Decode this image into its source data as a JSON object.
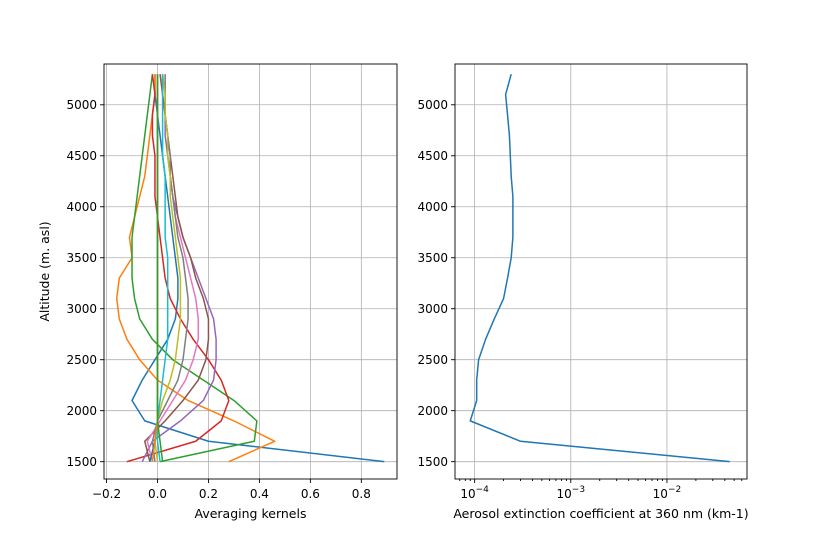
{
  "chart_data": [
    {
      "type": "line",
      "title": "",
      "xlabel": "Averaging kernels",
      "ylabel": "Altitude (m. asl)",
      "xlim": [
        -0.21,
        0.94
      ],
      "ylim": [
        1330,
        5400
      ],
      "xticks": [
        -0.2,
        0.0,
        0.2,
        0.4,
        0.6,
        0.8
      ],
      "xtick_labels": [
        "−0.2",
        "0.0",
        "0.2",
        "0.4",
        "0.6",
        "0.8"
      ],
      "yticks": [
        1500,
        2000,
        2500,
        3000,
        3500,
        4000,
        4500,
        5000
      ],
      "ytick_labels": [
        "1500",
        "2000",
        "2500",
        "3000",
        "3500",
        "4000",
        "4500",
        "5000"
      ],
      "grid": true,
      "y": [
        1500,
        1700,
        1900,
        2100,
        2300,
        2500,
        2700,
        2900,
        3100,
        3300,
        3500,
        3700,
        3900,
        4100,
        4300,
        4500,
        4700,
        4900,
        5100,
        5300
      ],
      "series": [
        {
          "color": "#1f77b4",
          "values": [
            0.89,
            0.2,
            -0.05,
            -0.1,
            -0.06,
            -0.01,
            0.04,
            0.07,
            0.08,
            0.08,
            0.07,
            0.06,
            0.05,
            0.04,
            0.03,
            0.02,
            0.01,
            0.0,
            -0.01,
            -0.01
          ]
        },
        {
          "color": "#ff7f0e",
          "values": [
            0.28,
            0.46,
            0.3,
            0.12,
            0.0,
            -0.07,
            -0.12,
            -0.15,
            -0.16,
            -0.15,
            -0.1,
            -0.11,
            -0.09,
            -0.07,
            -0.05,
            -0.04,
            -0.03,
            -0.02,
            -0.01,
            -0.01
          ]
        },
        {
          "color": "#2ca02c",
          "values": [
            0.01,
            0.38,
            0.39,
            0.3,
            0.18,
            0.06,
            -0.02,
            -0.07,
            -0.09,
            -0.1,
            -0.1,
            -0.1,
            -0.09,
            -0.08,
            -0.07,
            -0.06,
            -0.05,
            -0.04,
            -0.03,
            -0.02
          ]
        },
        {
          "color": "#d62728",
          "values": [
            -0.12,
            0.15,
            0.25,
            0.28,
            0.25,
            0.2,
            0.14,
            0.09,
            0.05,
            0.03,
            0.02,
            0.01,
            0.0,
            -0.01,
            -0.01,
            -0.01,
            -0.02,
            -0.02,
            -0.01,
            -0.02
          ]
        },
        {
          "color": "#9467bd",
          "values": [
            -0.06,
            -0.02,
            0.09,
            0.18,
            0.22,
            0.23,
            0.23,
            0.22,
            0.19,
            0.16,
            0.13,
            0.1,
            0.08,
            0.06,
            0.05,
            0.04,
            0.03,
            0.03,
            0.02,
            0.02
          ]
        },
        {
          "color": "#8c564b",
          "values": [
            -0.03,
            -0.05,
            0.03,
            0.1,
            0.16,
            0.19,
            0.2,
            0.2,
            0.18,
            0.15,
            0.13,
            0.1,
            0.08,
            0.07,
            0.06,
            0.05,
            0.04,
            0.03,
            0.02,
            0.01
          ]
        },
        {
          "color": "#e377c2",
          "values": [
            -0.02,
            -0.04,
            0.01,
            0.06,
            0.11,
            0.14,
            0.16,
            0.16,
            0.15,
            0.13,
            0.11,
            0.09,
            0.07,
            0.06,
            0.05,
            0.04,
            0.04,
            0.03,
            0.03,
            0.03
          ]
        },
        {
          "color": "#7f7f7f",
          "values": [
            -0.01,
            -0.02,
            0.0,
            0.04,
            0.08,
            0.1,
            0.11,
            0.12,
            0.12,
            0.11,
            0.1,
            0.08,
            0.07,
            0.06,
            0.05,
            0.05,
            0.04,
            0.03,
            0.03,
            0.03
          ]
        },
        {
          "color": "#bcbd22",
          "values": [
            0.0,
            -0.01,
            0.0,
            0.02,
            0.05,
            0.07,
            0.08,
            0.09,
            0.09,
            0.09,
            0.08,
            0.07,
            0.06,
            0.05,
            0.05,
            0.04,
            0.04,
            0.03,
            0.03,
            0.02
          ]
        },
        {
          "color": "#17becf",
          "values": [
            0.01,
            0.0,
            0.0,
            0.01,
            0.02,
            0.03,
            0.04,
            0.04,
            0.04,
            0.04,
            0.04,
            0.03,
            0.03,
            0.03,
            0.03,
            0.02,
            0.02,
            0.02,
            0.02,
            0.02
          ]
        },
        {
          "color": "#1f77b4",
          "values": [
            -0.03,
            -0.01,
            0.0,
            0.0,
            0.0,
            0.0,
            0.0,
            0.0,
            0.0,
            0.0,
            0.0,
            0.0,
            0.0,
            0.0,
            0.0,
            0.0,
            0.0,
            0.0,
            0.0,
            0.0
          ]
        },
        {
          "color": "#ff7f0e",
          "values": [
            -0.02,
            -0.01,
            0.0,
            0.0,
            0.0,
            0.0,
            0.0,
            0.0,
            0.0,
            0.0,
            0.0,
            0.0,
            0.0,
            0.0,
            0.0,
            0.0,
            0.0,
            0.0,
            0.0,
            0.0
          ]
        },
        {
          "color": "#2ca02c",
          "values": [
            0.02,
            0.01,
            0.0,
            0.0,
            0.0,
            0.0,
            0.0,
            0.0,
            0.0,
            0.0,
            0.0,
            0.0,
            0.0,
            0.0,
            0.0,
            0.0,
            0.0,
            0.0,
            0.0,
            0.0
          ]
        }
      ]
    },
    {
      "type": "line",
      "title": "",
      "xlabel": "Aerosol extinction coefficient at 360 nm (km-1)",
      "ylabel": "",
      "xscale": "log",
      "xlim": [
        6.25e-05,
        0.068
      ],
      "ylim": [
        1330,
        5400
      ],
      "xticks": [
        0.0001,
        0.001,
        0.01
      ],
      "xtick_labels": [
        {
          "base": "10",
          "exp": "−4"
        },
        {
          "base": "10",
          "exp": "−3"
        },
        {
          "base": "10",
          "exp": "−2"
        }
      ],
      "yticks": [
        1500,
        2000,
        2500,
        3000,
        3500,
        4000,
        4500,
        5000
      ],
      "ytick_labels": [
        "1500",
        "2000",
        "2500",
        "3000",
        "3500",
        "4000",
        "4500",
        "5000"
      ],
      "grid": true,
      "series": [
        {
          "color": "#1f77b4",
          "x": [
            0.045,
            0.0003,
            9e-05,
            0.000105,
            0.000105,
            0.00011,
            0.00013,
            0.00016,
            0.0002,
            0.00022,
            0.00024,
            0.00025,
            0.00025,
            0.00025,
            0.00024,
            0.000235,
            0.00023,
            0.00022,
            0.00021,
            0.00024
          ],
          "y": [
            1500,
            1700,
            1900,
            2100,
            2300,
            2500,
            2700,
            2900,
            3100,
            3300,
            3500,
            3700,
            3900,
            4100,
            4300,
            4500,
            4700,
            4900,
            5100,
            5300
          ]
        }
      ]
    }
  ]
}
